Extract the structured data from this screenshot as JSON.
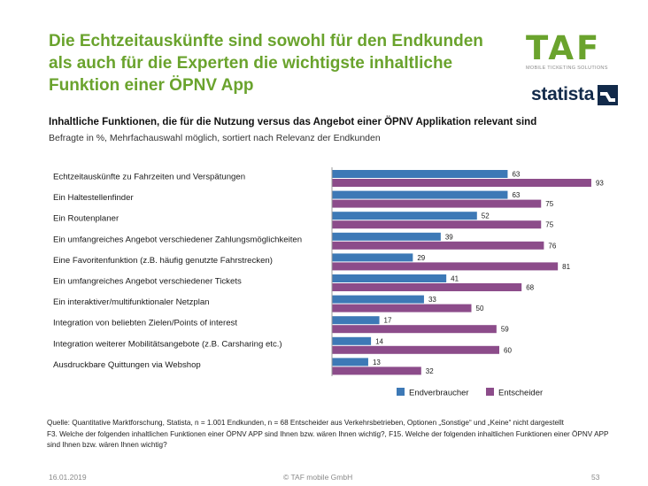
{
  "header": {
    "title": "Die Echtzeitauskünfte sind sowohl für den Endkunden als auch für die Experten die wichtigste inhaltliche Funktion einer ÖPNV App",
    "logo_taf_text": "TAF",
    "logo_taf_sub": "MOBILE TICKETING SOLUTIONS",
    "logo_statista_text": "statista"
  },
  "chart_data": {
    "type": "bar",
    "orientation": "horizontal",
    "title": "Inhaltliche Funktionen, die für die Nutzung versus das Angebot einer ÖPNV Applikation relevant sind",
    "subtitle": "Befragte in %, Mehrfachauswahl möglich, sortiert nach Relevanz der Endkunden",
    "categories": [
      "Echtzeitauskünfte  zu Fahrzeiten und Verspätungen",
      "Ein Haltestellenfinder",
      "Ein Routenplaner",
      "Ein umfangreiches Angebot verschiedener Zahlungsmöglichkeiten",
      "Eine Favoritenfunktion  (z.B. häufig genutzte Fahrstrecken)",
      "Ein umfangreiches Angebot verschiedener Tickets",
      "Ein interaktiver/multifunktionaler  Netzplan",
      "Integration von beliebten Zielen/Points  of interest",
      "Integration weiterer Mobilitätsangebote (z.B. Carsharing etc.)",
      "Ausdruckbare Quittungen  via Webshop"
    ],
    "series": [
      {
        "name": "Endverbraucher",
        "color": "#3d79b6",
        "values": [
          63,
          63,
          52,
          39,
          29,
          41,
          33,
          17,
          14,
          13
        ]
      },
      {
        "name": "Entscheider",
        "color": "#8c4c8a",
        "values": [
          93,
          75,
          75,
          76,
          81,
          68,
          50,
          59,
          60,
          32
        ]
      }
    ],
    "xlim": [
      0,
      100
    ],
    "grid": false,
    "legend_position": "bottom-right"
  },
  "footnote": {
    "source": "Quelle: Quantitative Marktforschung, Statista, n = 1.001 Endkunden, n = 68 Entscheider aus Verkehrsbetrieben, Optionen „Sonstige“ und „Keine“ nicht dargestellt",
    "questions": "F3. Welche der folgenden inhaltlichen Funktionen einer ÖPNV APP sind Ihnen bzw. wären Ihnen wichtig?, F15. Welche der folgenden inhaltlichen Funktionen einer ÖPNV APP sind Ihnen bzw. wären Ihnen wichtig?"
  },
  "footer": {
    "date": "16.01.2019",
    "copyright": "© TAF mobile GmbH",
    "page": "53"
  }
}
